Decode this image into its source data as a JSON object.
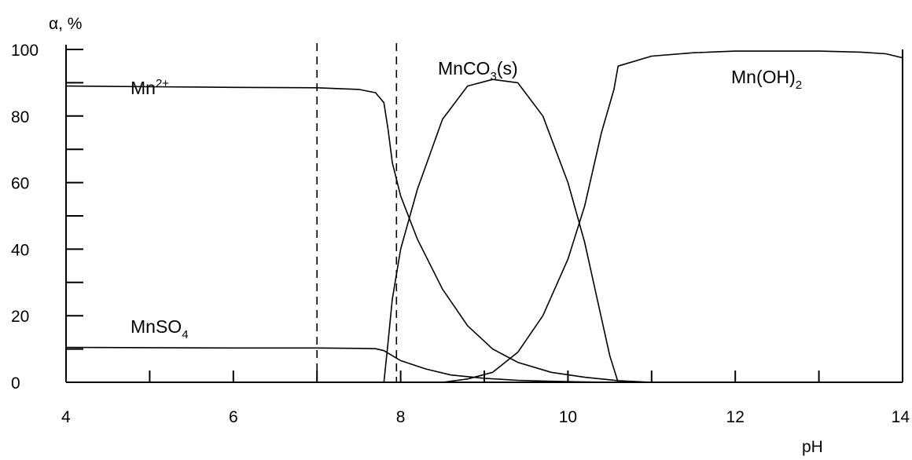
{
  "chart_data": {
    "type": "line",
    "ylabel": "α, %",
    "xlabel": "pH",
    "xlim": [
      4,
      14
    ],
    "ylim": [
      0,
      100
    ],
    "x_ticks": [
      "4",
      "6",
      "8",
      "10",
      "12",
      "14"
    ],
    "y_ticks": [
      "0",
      "20",
      "40",
      "60",
      "80",
      "100"
    ],
    "grid": false,
    "vertical_dashed_lines": [
      7.0,
      7.95
    ],
    "annotations": [
      {
        "key": "mn2",
        "base": "Mn",
        "sup": "2+"
      },
      {
        "key": "mnco3",
        "base": "MnCO",
        "sub": "3",
        "tail": "(s)"
      },
      {
        "key": "mnoh2",
        "base": "Mn(OH)",
        "sub": "2"
      },
      {
        "key": "mnso4",
        "base": "MnSO",
        "sub": "4"
      }
    ],
    "series": [
      {
        "key": "mn2",
        "x": [
          4.0,
          5.0,
          6.0,
          7.0,
          7.5,
          7.7,
          7.8,
          7.85,
          7.9,
          8.0,
          8.2,
          8.5,
          8.8,
          9.1,
          9.4,
          9.8,
          10.2,
          10.6,
          11.0
        ],
        "y": [
          89,
          88.8,
          88.6,
          88.5,
          88,
          87,
          84,
          76,
          66,
          56,
          43,
          28,
          17,
          10,
          6,
          3,
          1.5,
          0.5,
          0
        ]
      },
      {
        "key": "mnso4",
        "x": [
          4.0,
          5.0,
          6.0,
          7.0,
          7.5,
          7.7,
          7.8,
          8.0,
          8.3,
          8.6,
          9.0,
          9.4,
          9.8,
          10.2,
          10.6
        ],
        "y": [
          10.5,
          10.4,
          10.3,
          10.3,
          10.2,
          10.1,
          9.5,
          6.5,
          4,
          2.2,
          1.2,
          0.6,
          0.3,
          0.1,
          0
        ]
      },
      {
        "key": "mnco3",
        "x": [
          7.8,
          7.85,
          7.9,
          8.0,
          8.2,
          8.5,
          8.8,
          9.1,
          9.4,
          9.7,
          10.0,
          10.2,
          10.35,
          10.5,
          10.6
        ],
        "y": [
          0,
          12,
          25,
          40,
          58,
          79,
          89,
          91,
          90,
          80,
          60,
          42,
          25,
          8,
          0
        ]
      },
      {
        "key": "mnoh2",
        "x": [
          8.5,
          8.8,
          9.1,
          9.4,
          9.7,
          10.0,
          10.2,
          10.4,
          10.55,
          10.6,
          11.0,
          11.5,
          12.0,
          12.5,
          13.0,
          13.5,
          13.8,
          14.0
        ],
        "y": [
          0,
          1,
          3,
          9,
          20,
          37,
          53,
          75,
          88,
          95,
          98,
          99,
          99.5,
          99.5,
          99.5,
          99.2,
          98.7,
          97.5
        ]
      }
    ]
  }
}
